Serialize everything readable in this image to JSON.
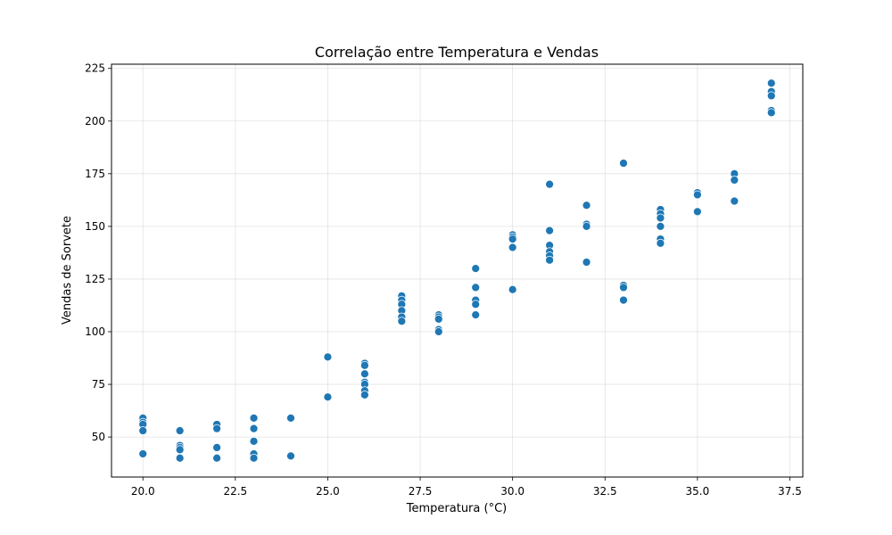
{
  "chart_data": {
    "type": "scatter",
    "title": "Correlação entre Temperatura e Vendas",
    "xlabel": "Temperatura (°C)",
    "ylabel": "Vendas de Sorvete",
    "xlim": [
      19.15,
      37.85
    ],
    "ylim": [
      31,
      227
    ],
    "xticks": [
      20.0,
      22.5,
      25.0,
      27.5,
      30.0,
      32.5,
      35.0,
      37.5
    ],
    "xtick_labels": [
      "20.0",
      "22.5",
      "25.0",
      "27.5",
      "30.0",
      "32.5",
      "35.0",
      "37.5"
    ],
    "yticks": [
      50,
      75,
      100,
      125,
      150,
      175,
      200,
      225
    ],
    "ytick_labels": [
      "50",
      "75",
      "100",
      "125",
      "150",
      "175",
      "200",
      "225"
    ],
    "grid": true,
    "marker_color": "#1f77b4",
    "marker_edge_color": "#ffffff",
    "points": [
      [
        20,
        59
      ],
      [
        20,
        57
      ],
      [
        20,
        56
      ],
      [
        20,
        53
      ],
      [
        20,
        42
      ],
      [
        21,
        53
      ],
      [
        21,
        46
      ],
      [
        21,
        45
      ],
      [
        21,
        44
      ],
      [
        21,
        40
      ],
      [
        22,
        56
      ],
      [
        22,
        54
      ],
      [
        22,
        45
      ],
      [
        22,
        40
      ],
      [
        23,
        59
      ],
      [
        23,
        54
      ],
      [
        23,
        48
      ],
      [
        23,
        42
      ],
      [
        23,
        40
      ],
      [
        24,
        59
      ],
      [
        24,
        41
      ],
      [
        25,
        88
      ],
      [
        25,
        69
      ],
      [
        26,
        85
      ],
      [
        26,
        84
      ],
      [
        26,
        80
      ],
      [
        26,
        76
      ],
      [
        26,
        75
      ],
      [
        26,
        72
      ],
      [
        26,
        70
      ],
      [
        27,
        117
      ],
      [
        27,
        115
      ],
      [
        27,
        113
      ],
      [
        27,
        110
      ],
      [
        27,
        107
      ],
      [
        27,
        105
      ],
      [
        28,
        108
      ],
      [
        28,
        107
      ],
      [
        28,
        106
      ],
      [
        28,
        101
      ],
      [
        28,
        100
      ],
      [
        29,
        130
      ],
      [
        29,
        121
      ],
      [
        29,
        115
      ],
      [
        29,
        113
      ],
      [
        29,
        108
      ],
      [
        30,
        146
      ],
      [
        30,
        145
      ],
      [
        30,
        144
      ],
      [
        30,
        140
      ],
      [
        30,
        120
      ],
      [
        31,
        170
      ],
      [
        31,
        148
      ],
      [
        31,
        141
      ],
      [
        31,
        138
      ],
      [
        31,
        136
      ],
      [
        31,
        134
      ],
      [
        32,
        160
      ],
      [
        32,
        151
      ],
      [
        32,
        150
      ],
      [
        32,
        133
      ],
      [
        33,
        180
      ],
      [
        33,
        122
      ],
      [
        33,
        121
      ],
      [
        33,
        115
      ],
      [
        34,
        158
      ],
      [
        34,
        156
      ],
      [
        34,
        154
      ],
      [
        34,
        150
      ],
      [
        34,
        144
      ],
      [
        34,
        142
      ],
      [
        35,
        166
      ],
      [
        35,
        165
      ],
      [
        35,
        157
      ],
      [
        36,
        175
      ],
      [
        36,
        172
      ],
      [
        36,
        162
      ],
      [
        37,
        218
      ],
      [
        37,
        214
      ],
      [
        37,
        212
      ],
      [
        37,
        205
      ],
      [
        37,
        204
      ]
    ]
  }
}
